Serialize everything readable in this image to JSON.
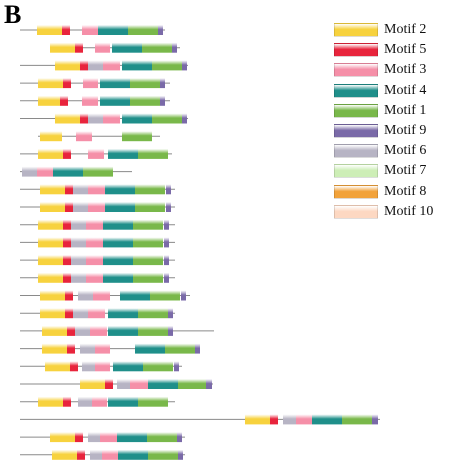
{
  "panel_label": "B",
  "motifs": [
    {
      "name": "Motif 2",
      "color": "#F7D23E"
    },
    {
      "name": "Motif 5",
      "color": "#E8243C"
    },
    {
      "name": "Motif 3",
      "color": "#F58FA8"
    },
    {
      "name": "Motif 4",
      "color": "#1F8F8A"
    },
    {
      "name": "Motif 1",
      "color": "#79B84A"
    },
    {
      "name": "Motif 9",
      "color": "#7A6AA8"
    },
    {
      "name": "Motif 6",
      "color": "#B7B4C4"
    },
    {
      "name": "Motif 7",
      "color": "#CDEEB6"
    },
    {
      "name": "Motif 8",
      "color": "#F2A23A"
    },
    {
      "name": "Motif 10",
      "color": "#FDD8C2"
    }
  ],
  "sequences": [
    {
      "start": 20,
      "end": 165,
      "motifs": [
        [
          "Motif 2",
          37,
          62
        ],
        [
          "Motif 5",
          62,
          70
        ],
        [
          "Motif 3",
          82,
          98
        ],
        [
          "Motif 4",
          98,
          128
        ],
        [
          "Motif 1",
          128,
          158
        ],
        [
          "Motif 9",
          158,
          163
        ]
      ]
    },
    {
      "start": 50,
      "end": 180,
      "motifs": [
        [
          "Motif 2",
          50,
          75
        ],
        [
          "Motif 5",
          75,
          83
        ],
        [
          "Motif 3",
          95,
          110
        ],
        [
          "Motif 4",
          112,
          142
        ],
        [
          "Motif 1",
          142,
          172
        ],
        [
          "Motif 9",
          172,
          177
        ]
      ]
    },
    {
      "start": 20,
      "end": 188,
      "motifs": [
        [
          "Motif 2",
          55,
          80
        ],
        [
          "Motif 5",
          80,
          88
        ],
        [
          "Motif 6",
          88,
          103
        ],
        [
          "Motif 3",
          103,
          120
        ],
        [
          "Motif 4",
          122,
          152
        ],
        [
          "Motif 1",
          152,
          182
        ],
        [
          "Motif 9",
          182,
          187
        ]
      ]
    },
    {
      "start": 20,
      "end": 170,
      "motifs": [
        [
          "Motif 2",
          38,
          63
        ],
        [
          "Motif 5",
          63,
          71
        ],
        [
          "Motif 3",
          83,
          98
        ],
        [
          "Motif 4",
          100,
          130
        ],
        [
          "Motif 1",
          130,
          160
        ],
        [
          "Motif 9",
          160,
          165
        ]
      ]
    },
    {
      "start": 20,
      "end": 170,
      "motifs": [
        [
          "Motif 2",
          38,
          60
        ],
        [
          "Motif 5",
          60,
          68
        ],
        [
          "Motif 3",
          82,
          98
        ],
        [
          "Motif 4",
          100,
          130
        ],
        [
          "Motif 1",
          130,
          160
        ],
        [
          "Motif 9",
          160,
          165
        ]
      ]
    },
    {
      "start": 20,
      "end": 188,
      "motifs": [
        [
          "Motif 2",
          55,
          80
        ],
        [
          "Motif 5",
          80,
          88
        ],
        [
          "Motif 6",
          88,
          103
        ],
        [
          "Motif 3",
          103,
          120
        ],
        [
          "Motif 4",
          122,
          152
        ],
        [
          "Motif 1",
          152,
          182
        ],
        [
          "Motif 9",
          182,
          187
        ]
      ]
    },
    {
      "start": 38,
      "end": 160,
      "motifs": [
        [
          "Motif 2",
          40,
          62
        ],
        [
          "Motif 3",
          76,
          92
        ],
        [
          "Motif 1",
          122,
          152
        ]
      ]
    },
    {
      "start": 20,
      "end": 172,
      "motifs": [
        [
          "Motif 2",
          38,
          63
        ],
        [
          "Motif 5",
          63,
          71
        ],
        [
          "Motif 3",
          88,
          104
        ],
        [
          "Motif 4",
          108,
          138
        ],
        [
          "Motif 1",
          138,
          168
        ]
      ]
    },
    {
      "start": 20,
      "end": 132,
      "motifs": [
        [
          "Motif 6",
          22,
          37
        ],
        [
          "Motif 3",
          37,
          53
        ],
        [
          "Motif 4",
          53,
          83
        ],
        [
          "Motif 1",
          83,
          113
        ]
      ]
    },
    {
      "start": 20,
      "end": 175,
      "motifs": [
        [
          "Motif 2",
          40,
          65
        ],
        [
          "Motif 5",
          65,
          73
        ],
        [
          "Motif 6",
          73,
          88
        ],
        [
          "Motif 3",
          88,
          105
        ],
        [
          "Motif 4",
          105,
          135
        ],
        [
          "Motif 1",
          135,
          165
        ],
        [
          "Motif 9",
          166,
          171
        ]
      ]
    },
    {
      "start": 20,
      "end": 175,
      "motifs": [
        [
          "Motif 2",
          40,
          65
        ],
        [
          "Motif 5",
          65,
          73
        ],
        [
          "Motif 6",
          73,
          88
        ],
        [
          "Motif 3",
          88,
          105
        ],
        [
          "Motif 4",
          105,
          135
        ],
        [
          "Motif 1",
          135,
          165
        ],
        [
          "Motif 9",
          166,
          171
        ]
      ]
    },
    {
      "start": 20,
      "end": 175,
      "motifs": [
        [
          "Motif 2",
          38,
          63
        ],
        [
          "Motif 5",
          63,
          71
        ],
        [
          "Motif 6",
          71,
          86
        ],
        [
          "Motif 3",
          86,
          103
        ],
        [
          "Motif 4",
          103,
          133
        ],
        [
          "Motif 1",
          133,
          163
        ],
        [
          "Motif 9",
          164,
          169
        ]
      ]
    },
    {
      "start": 20,
      "end": 175,
      "motifs": [
        [
          "Motif 2",
          38,
          63
        ],
        [
          "Motif 5",
          63,
          71
        ],
        [
          "Motif 6",
          71,
          86
        ],
        [
          "Motif 3",
          86,
          103
        ],
        [
          "Motif 4",
          103,
          133
        ],
        [
          "Motif 1",
          133,
          163
        ],
        [
          "Motif 9",
          164,
          169
        ]
      ]
    },
    {
      "start": 20,
      "end": 175,
      "motifs": [
        [
          "Motif 2",
          38,
          63
        ],
        [
          "Motif 5",
          63,
          71
        ],
        [
          "Motif 6",
          71,
          86
        ],
        [
          "Motif 3",
          86,
          103
        ],
        [
          "Motif 4",
          103,
          133
        ],
        [
          "Motif 1",
          133,
          163
        ],
        [
          "Motif 9",
          164,
          169
        ]
      ]
    },
    {
      "start": 20,
      "end": 175,
      "motifs": [
        [
          "Motif 2",
          38,
          63
        ],
        [
          "Motif 5",
          63,
          71
        ],
        [
          "Motif 6",
          71,
          86
        ],
        [
          "Motif 3",
          86,
          103
        ],
        [
          "Motif 4",
          103,
          133
        ],
        [
          "Motif 1",
          133,
          163
        ],
        [
          "Motif 9",
          164,
          169
        ]
      ]
    },
    {
      "start": 20,
      "end": 190,
      "motifs": [
        [
          "Motif 2",
          40,
          65
        ],
        [
          "Motif 5",
          65,
          73
        ],
        [
          "Motif 6",
          78,
          93
        ],
        [
          "Motif 3",
          93,
          110
        ],
        [
          "Motif 4",
          120,
          150
        ],
        [
          "Motif 1",
          150,
          180
        ],
        [
          "Motif 9",
          181,
          186
        ]
      ]
    },
    {
      "start": 20,
      "end": 175,
      "motifs": [
        [
          "Motif 2",
          40,
          65
        ],
        [
          "Motif 5",
          65,
          73
        ],
        [
          "Motif 6",
          73,
          88
        ],
        [
          "Motif 3",
          88,
          105
        ],
        [
          "Motif 4",
          108,
          138
        ],
        [
          "Motif 1",
          138,
          168
        ],
        [
          "Motif 9",
          168,
          173
        ]
      ]
    },
    {
      "start": 20,
      "end": 214,
      "motifs": [
        [
          "Motif 2",
          42,
          67
        ],
        [
          "Motif 5",
          67,
          75
        ],
        [
          "Motif 6",
          75,
          90
        ],
        [
          "Motif 3",
          90,
          107
        ],
        [
          "Motif 4",
          108,
          138
        ],
        [
          "Motif 1",
          138,
          168
        ],
        [
          "Motif 9",
          168,
          173
        ]
      ]
    },
    {
      "start": 20,
      "end": 200,
      "motifs": [
        [
          "Motif 2",
          42,
          67
        ],
        [
          "Motif 5",
          67,
          75
        ],
        [
          "Motif 6",
          80,
          95
        ],
        [
          "Motif 3",
          95,
          110
        ],
        [
          "Motif 4",
          135,
          165
        ],
        [
          "Motif 1",
          165,
          195
        ],
        [
          "Motif 9",
          195,
          200
        ]
      ]
    },
    {
      "start": 20,
      "end": 182,
      "motifs": [
        [
          "Motif 2",
          45,
          70
        ],
        [
          "Motif 5",
          70,
          78
        ],
        [
          "Motif 6",
          82,
          95
        ],
        [
          "Motif 3",
          95,
          110
        ],
        [
          "Motif 4",
          113,
          143
        ],
        [
          "Motif 1",
          143,
          173
        ],
        [
          "Motif 9",
          174,
          179
        ]
      ]
    },
    {
      "start": 20,
      "end": 213,
      "motifs": [
        [
          "Motif 2",
          80,
          105
        ],
        [
          "Motif 5",
          105,
          113
        ],
        [
          "Motif 6",
          117,
          130
        ],
        [
          "Motif 3",
          130,
          148
        ],
        [
          "Motif 4",
          148,
          178
        ],
        [
          "Motif 1",
          178,
          206
        ],
        [
          "Motif 9",
          206,
          212
        ]
      ]
    },
    {
      "start": 20,
      "end": 175,
      "motifs": [
        [
          "Motif 2",
          38,
          63
        ],
        [
          "Motif 5",
          63,
          71
        ],
        [
          "Motif 6",
          78,
          92
        ],
        [
          "Motif 3",
          92,
          107
        ],
        [
          "Motif 4",
          108,
          138
        ],
        [
          "Motif 1",
          138,
          168
        ]
      ]
    },
    {
      "start": 20,
      "end": 380,
      "motifs": [
        [
          "Motif 2",
          245,
          270
        ],
        [
          "Motif 5",
          270,
          278
        ],
        [
          "Motif 6",
          283,
          296
        ],
        [
          "Motif 3",
          296,
          312
        ],
        [
          "Motif 4",
          312,
          342
        ],
        [
          "Motif 1",
          342,
          372
        ],
        [
          "Motif 9",
          372,
          378
        ]
      ]
    },
    {
      "start": 20,
      "end": 185,
      "motifs": [
        [
          "Motif 2",
          50,
          75
        ],
        [
          "Motif 5",
          75,
          83
        ],
        [
          "Motif 6",
          88,
          100
        ],
        [
          "Motif 3",
          100,
          117
        ],
        [
          "Motif 4",
          117,
          147
        ],
        [
          "Motif 1",
          147,
          177
        ],
        [
          "Motif 9",
          177,
          182
        ]
      ]
    },
    {
      "start": 20,
      "end": 185,
      "motifs": [
        [
          "Motif 2",
          52,
          77
        ],
        [
          "Motif 5",
          77,
          85
        ],
        [
          "Motif 6",
          90,
          102
        ],
        [
          "Motif 3",
          102,
          118
        ],
        [
          "Motif 4",
          118,
          148
        ],
        [
          "Motif 1",
          148,
          178
        ],
        [
          "Motif 9",
          178,
          183
        ]
      ]
    }
  ]
}
